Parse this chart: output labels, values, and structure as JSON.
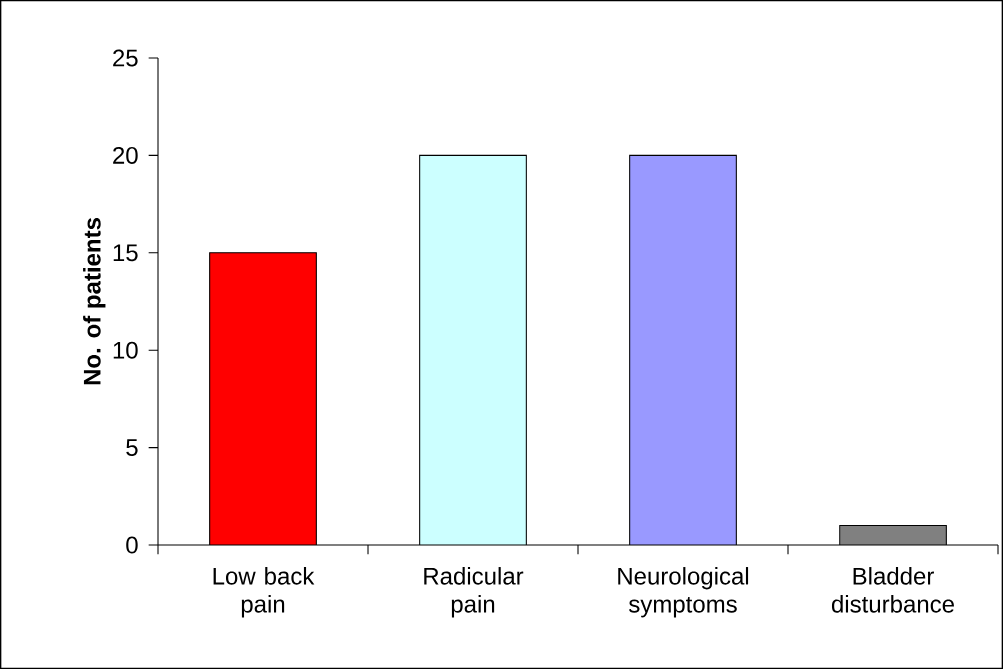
{
  "chart_data": {
    "type": "bar",
    "ylabel": "No. of patients",
    "categories": [
      "Low back pain",
      "Radicular pain",
      "Neurological symptoms",
      "Bladder disturbance"
    ],
    "values": [
      15,
      20,
      20,
      1
    ],
    "colors": [
      "#ff0000",
      "#ccffff",
      "#9999ff",
      "#808080"
    ],
    "ylim": [
      0,
      25
    ],
    "yticks": [
      0,
      5,
      10,
      15,
      20,
      25
    ],
    "grid": false
  }
}
